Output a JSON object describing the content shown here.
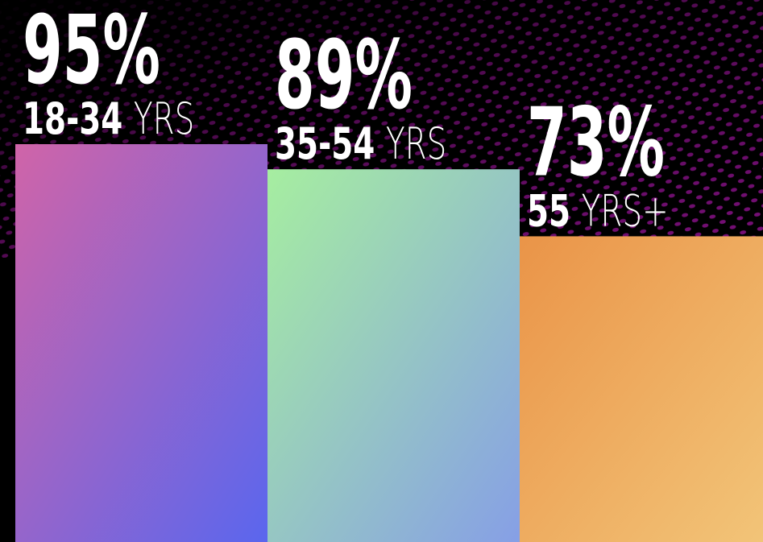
{
  "chart_data": {
    "type": "bar",
    "categories": [
      "18-34 YRS",
      "35-54 YRS",
      "55 YRS+"
    ],
    "values": [
      95,
      89,
      73
    ],
    "value_labels": [
      "95%",
      "89%",
      "73%"
    ],
    "colors": [
      [
        "#d064a8",
        "#5a66ee"
      ],
      [
        "#a6eea0",
        "#869fe6"
      ],
      [
        "#ea9448",
        "#f2c478"
      ]
    ]
  }
}
